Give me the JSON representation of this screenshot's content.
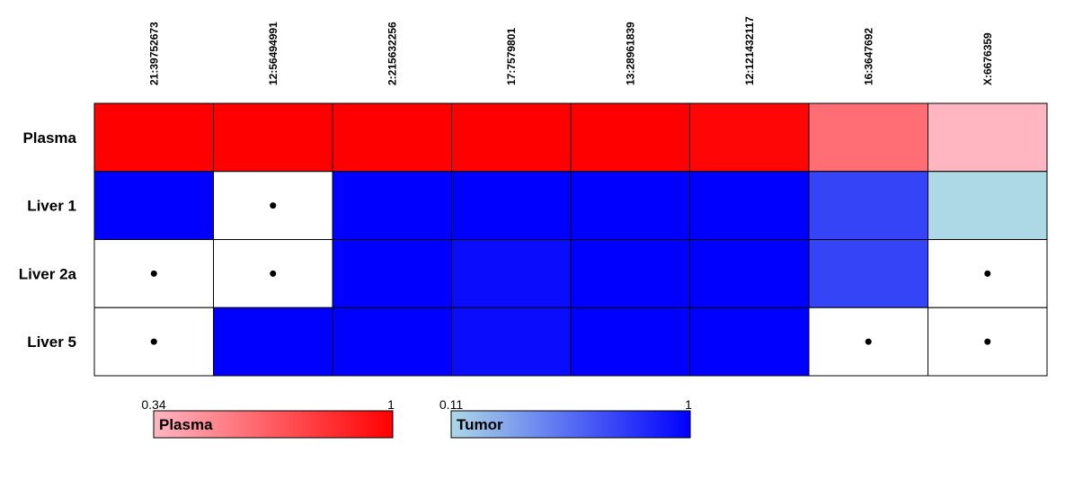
{
  "chart_data": {
    "type": "heatmap",
    "columns": [
      "21:39752673",
      "12:56494991",
      "2:215632256",
      "17:7579801",
      "13:28961839",
      "12:121432117",
      "16:3647692",
      "X:6676359"
    ],
    "rows": [
      "Plasma",
      "Liver 1",
      "Liver 2a",
      "Liver 5"
    ],
    "row_scale": [
      "plasma",
      "tumor",
      "tumor",
      "tumor"
    ],
    "values": [
      [
        1.0,
        1.0,
        1.0,
        1.0,
        1.0,
        0.98,
        0.6,
        0.34
      ],
      [
        1.0,
        null,
        1.0,
        1.0,
        1.0,
        1.0,
        0.72,
        0.11
      ],
      [
        null,
        null,
        1.0,
        0.95,
        1.0,
        1.0,
        0.72,
        null
      ],
      [
        null,
        1.0,
        1.0,
        0.95,
        1.0,
        1.0,
        null,
        null
      ]
    ],
    "missing_marker": "dot",
    "legends": [
      {
        "name": "Plasma",
        "min_label": "0.34",
        "max_label": "1",
        "min": 0.34,
        "max": 1,
        "color_low": "#ffb6c1",
        "color_high": "#ff0000"
      },
      {
        "name": "Tumor",
        "min_label": "0.11",
        "max_label": "1",
        "min": 0.11,
        "max": 1,
        "color_low": "#add8e6",
        "color_high": "#0000ff"
      }
    ]
  }
}
